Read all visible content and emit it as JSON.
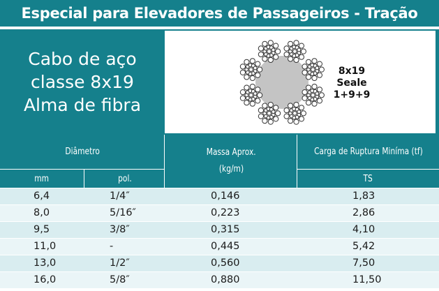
{
  "title": "Especial para Elevadores de Passageiros - Tração",
  "cable": {
    "lines": [
      "Cabo de aço",
      "classe 8x19",
      "Alma de fibra"
    ]
  },
  "spec": {
    "lines": [
      "8x19",
      "Seale",
      "1+9+9"
    ]
  },
  "table": {
    "header": {
      "diametro": "Diâmetro",
      "massa_line1": "Massa Aprox.",
      "massa_line2": "(kg/m)",
      "carga": "Carga de Ruptura Miníma (tf)",
      "mm": "mm",
      "pol": "pol.",
      "ts": "TS"
    },
    "rows": [
      {
        "mm": "6,4",
        "pol": "1/4″",
        "massa": "0,146",
        "carga": "1,83"
      },
      {
        "mm": "8,0",
        "pol": "5/16″",
        "massa": "0,223",
        "carga": "2,86"
      },
      {
        "mm": "9,5",
        "pol": "3/8″",
        "massa": "0,315",
        "carga": "4,10"
      },
      {
        "mm": "11,0",
        "pol": "-",
        "massa": "0,445",
        "carga": "5,42"
      },
      {
        "mm": "13,0",
        "pol": "1/2″",
        "massa": "0,560",
        "carga": "7,50"
      },
      {
        "mm": "16,0",
        "pol": "5/8″",
        "massa": "0,880",
        "carga": "11,50"
      }
    ]
  },
  "colors": {
    "teal": "#15808c",
    "row_odd": "#d9edf0",
    "row_even": "#eaf5f7",
    "core": "#c4c4c4"
  }
}
